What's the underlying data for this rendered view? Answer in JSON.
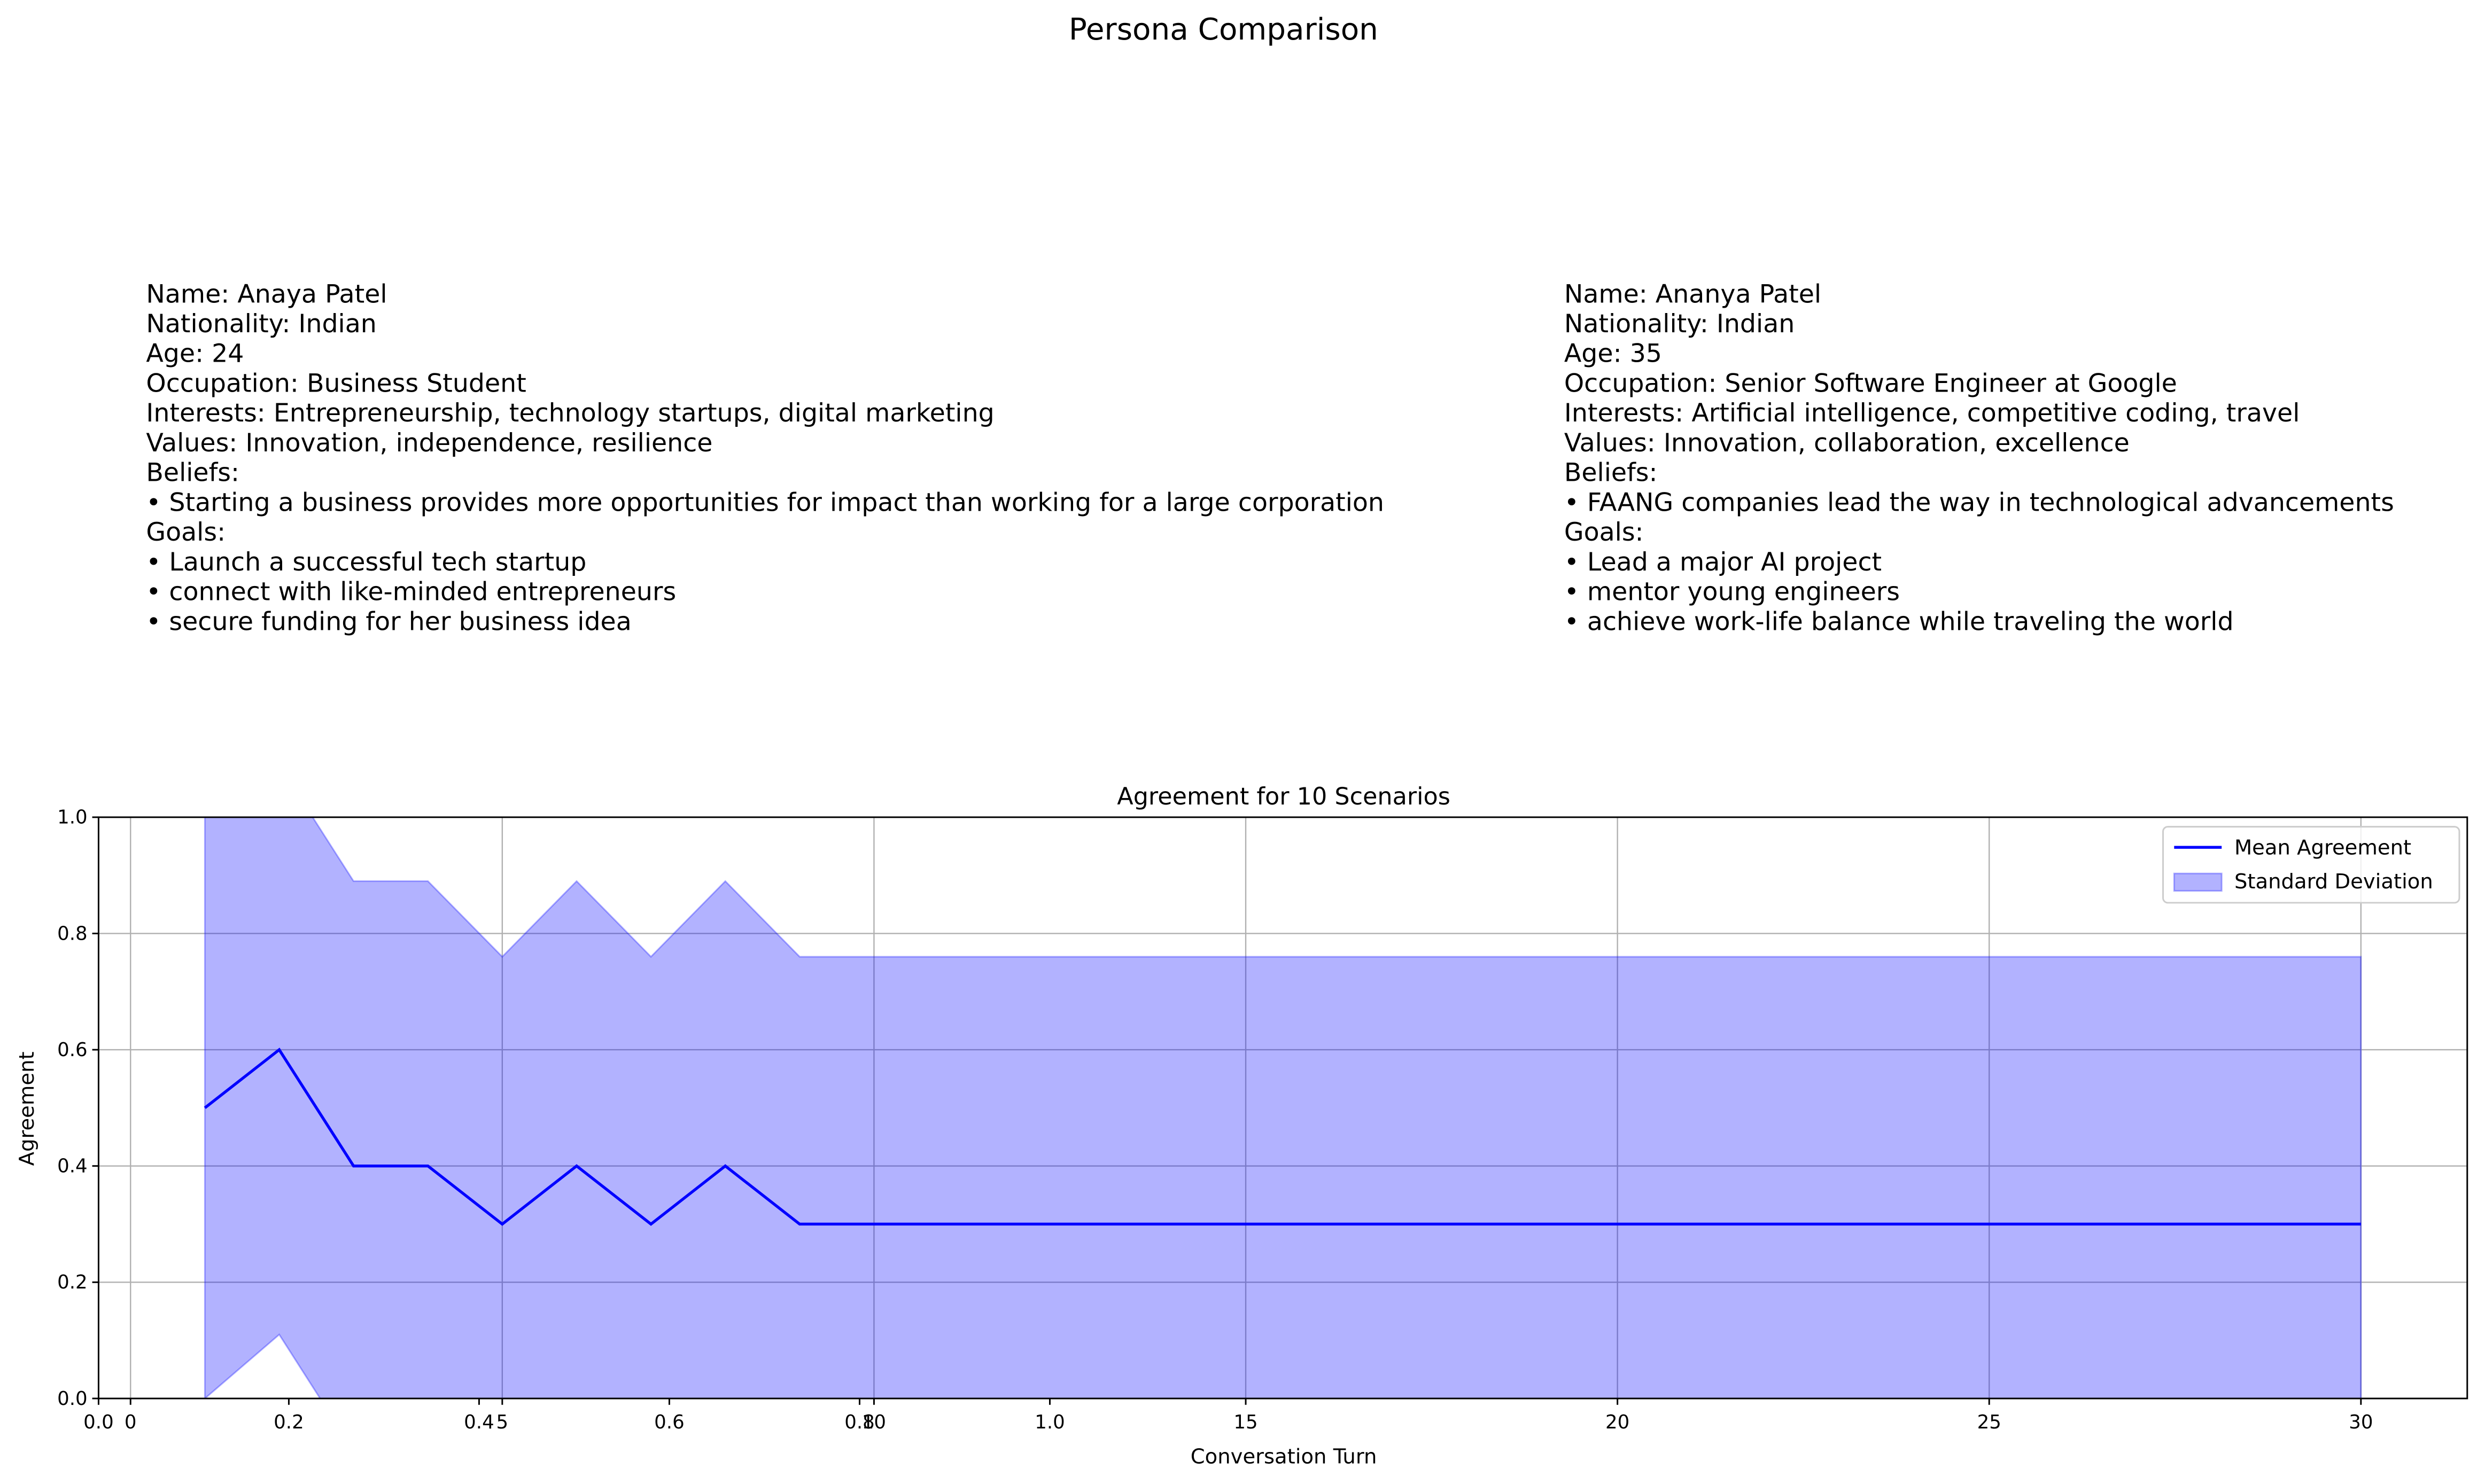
{
  "title": "Persona Comparison",
  "personas": [
    {
      "lines": [
        "Name: Anaya Patel",
        "Nationality: Indian",
        "Age: 24",
        "Occupation: Business Student",
        "Interests: Entrepreneurship, technology startups, digital marketing",
        "Values: Innovation, independence, resilience",
        "Beliefs:",
        "• Starting a business provides more opportunities for impact than working for a large corporation",
        "Goals:",
        "• Launch a successful tech startup",
        "• connect with like-minded entrepreneurs",
        "• secure funding for her business idea"
      ]
    },
    {
      "lines": [
        "Name: Ananya Patel",
        "Nationality: Indian",
        "Age: 35",
        "Occupation: Senior Software Engineer at Google",
        "Interests: Artificial intelligence, competitive coding, travel",
        "Values: Innovation, collaboration, excellence",
        "Beliefs:",
        "• FAANG companies lead the way in technological advancements",
        "Goals:",
        "• Lead a major AI project",
        "• mentor young engineers",
        "• achieve work-life balance while traveling the world"
      ]
    }
  ],
  "chart_data": {
    "type": "line",
    "title": "Agreement for 10 Scenarios",
    "x_label": "Conversation Turn",
    "y_label": "Agreement",
    "x": [
      1,
      2,
      3,
      4,
      5,
      6,
      7,
      8,
      9,
      10,
      11,
      12,
      13,
      14,
      15,
      16,
      17,
      18,
      19,
      20,
      21,
      22,
      23,
      24,
      25,
      26,
      27,
      28,
      29,
      30
    ],
    "series": [
      {
        "name": "Mean Agreement",
        "color": "#0000ff",
        "values": [
          0.5,
          0.6,
          0.4,
          0.4,
          0.3,
          0.4,
          0.3,
          0.4,
          0.3,
          0.3,
          0.3,
          0.3,
          0.3,
          0.3,
          0.3,
          0.3,
          0.3,
          0.3,
          0.3,
          0.3,
          0.3,
          0.3,
          0.3,
          0.3,
          0.3,
          0.3,
          0.3,
          0.3,
          0.3,
          0.3
        ]
      },
      {
        "name": "Standard Deviation",
        "color": "#0000ff",
        "upper": [
          1.0,
          1.09,
          0.89,
          0.89,
          0.76,
          0.89,
          0.76,
          0.89,
          0.76,
          0.76,
          0.76,
          0.76,
          0.76,
          0.76,
          0.76,
          0.76,
          0.76,
          0.76,
          0.76,
          0.76,
          0.76,
          0.76,
          0.76,
          0.76,
          0.76,
          0.76,
          0.76,
          0.76,
          0.76,
          0.76
        ],
        "lower": [
          0,
          0.11,
          -0.09,
          -0.09,
          -0.16,
          -0.09,
          -0.16,
          -0.09,
          -0.16,
          -0.16,
          -0.16,
          -0.16,
          -0.16,
          -0.16,
          -0.16,
          -0.16,
          -0.16,
          -0.16,
          -0.16,
          -0.16,
          -0.16,
          -0.16,
          -0.16,
          -0.16,
          -0.16,
          -0.16,
          -0.16,
          -0.16,
          -0.16,
          -0.16
        ]
      }
    ],
    "xlim": [
      -0.43,
      31.43
    ],
    "xticks": [
      0,
      5,
      10,
      15,
      20,
      25,
      30
    ],
    "x2lim": [
      0,
      2.49
    ],
    "x2ticks": [
      0.0,
      0.2,
      0.4,
      0.6,
      0.8,
      1.0
    ],
    "ylim": [
      0,
      1
    ],
    "yticks": [
      0.0,
      0.2,
      0.4,
      0.6,
      0.8,
      1.0
    ],
    "grid": true,
    "legend": "upper right"
  }
}
